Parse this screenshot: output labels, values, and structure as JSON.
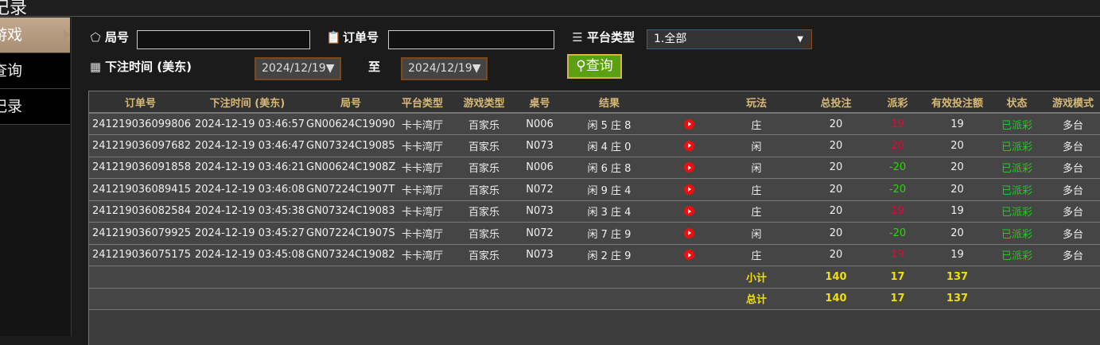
{
  "header": {
    "title": "记录"
  },
  "sidebar": {
    "items": [
      {
        "label": "游戏",
        "active": true
      },
      {
        "label": "查询"
      },
      {
        "label": "记录"
      }
    ]
  },
  "filters": {
    "round_label": "局号",
    "round_value": "",
    "order_label": "订单号",
    "order_value": "",
    "platform_label": "平台类型",
    "platform_value": "1.全部",
    "time_label": "下注时间 (美东)",
    "date_from": "2024/12/19",
    "to_label": "至",
    "date_to": "2024/12/19",
    "query_label": "查询"
  },
  "table": {
    "columns": [
      "订单号",
      "下注时间 (美东)",
      "局号",
      "平台类型",
      "游戏类型",
      "桌号",
      "结果",
      "",
      "玩法",
      "总投注",
      "派彩",
      "有效投注额",
      "状态",
      "游戏模式"
    ],
    "rows": [
      {
        "order": "241219036099806",
        "time": "2024-12-19 03:46:57",
        "round": "GN00624C19090",
        "platform": "卡卡湾厅",
        "game": "百家乐",
        "table": "N006",
        "result": "闲 5 庄 8",
        "bet_type": "庄",
        "total": "20",
        "payout": "19",
        "payout_color": "red",
        "valid": "19",
        "status": "已派彩",
        "mode": "多台"
      },
      {
        "order": "241219036097682",
        "time": "2024-12-19 03:46:47",
        "round": "GN07324C19085",
        "platform": "卡卡湾厅",
        "game": "百家乐",
        "table": "N073",
        "result": "闲 4 庄 0",
        "bet_type": "闲",
        "total": "20",
        "payout": "20",
        "payout_color": "red",
        "valid": "20",
        "status": "已派彩",
        "mode": "多台"
      },
      {
        "order": "241219036091858",
        "time": "2024-12-19 03:46:21",
        "round": "GN00624C1908Z",
        "platform": "卡卡湾厅",
        "game": "百家乐",
        "table": "N006",
        "result": "闲 6 庄 8",
        "bet_type": "闲",
        "total": "20",
        "payout": "-20",
        "payout_color": "green",
        "valid": "20",
        "status": "已派彩",
        "mode": "多台"
      },
      {
        "order": "241219036089415",
        "time": "2024-12-19 03:46:08",
        "round": "GN07224C1907T",
        "platform": "卡卡湾厅",
        "game": "百家乐",
        "table": "N072",
        "result": "闲 9 庄 4",
        "bet_type": "庄",
        "total": "20",
        "payout": "-20",
        "payout_color": "green",
        "valid": "20",
        "status": "已派彩",
        "mode": "多台"
      },
      {
        "order": "241219036082584",
        "time": "2024-12-19 03:45:38",
        "round": "GN07324C19083",
        "platform": "卡卡湾厅",
        "game": "百家乐",
        "table": "N073",
        "result": "闲 3 庄 4",
        "bet_type": "庄",
        "total": "20",
        "payout": "19",
        "payout_color": "red",
        "valid": "19",
        "status": "已派彩",
        "mode": "多台"
      },
      {
        "order": "241219036079925",
        "time": "2024-12-19 03:45:27",
        "round": "GN07224C1907S",
        "platform": "卡卡湾厅",
        "game": "百家乐",
        "table": "N072",
        "result": "闲 7 庄 9",
        "bet_type": "闲",
        "total": "20",
        "payout": "-20",
        "payout_color": "green",
        "valid": "20",
        "status": "已派彩",
        "mode": "多台"
      },
      {
        "order": "241219036075175",
        "time": "2024-12-19 03:45:08",
        "round": "GN07324C19082",
        "platform": "卡卡湾厅",
        "game": "百家乐",
        "table": "N073",
        "result": "闲 2 庄 9",
        "bet_type": "庄",
        "total": "20",
        "payout": "19",
        "payout_color": "red",
        "valid": "19",
        "status": "已派彩",
        "mode": "多台"
      }
    ],
    "subtotal": {
      "label": "小计",
      "total": "140",
      "payout": "17",
      "valid": "137"
    },
    "grand_total": {
      "label": "总计",
      "total": "140",
      "payout": "17",
      "valid": "137"
    }
  }
}
